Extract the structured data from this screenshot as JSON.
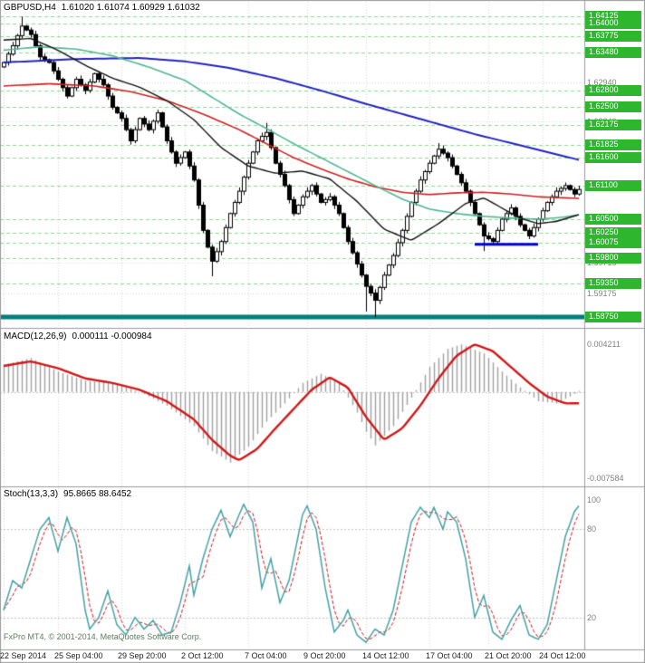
{
  "header": {
    "symbol_period": "GBPUSD,H4",
    "ohlc": "1.61020 1.61074 1.60929 1.61032"
  },
  "indicators": {
    "macd": {
      "label": "MACD(12,26,9)",
      "values": "0.000111 -0.000984",
      "scale": [
        {
          "label": "0.004211",
          "value": 0.004211
        },
        {
          "label": "-0.007584",
          "value": -0.007584
        }
      ]
    },
    "stoch": {
      "label": "Stoch(13,3,3)",
      "values": "95.8665 88.6452",
      "scale": [
        {
          "label": "100",
          "value": 100
        },
        {
          "label": "80",
          "value": 80
        },
        {
          "label": "20",
          "value": 20
        }
      ],
      "levels": [
        80,
        20
      ]
    }
  },
  "watermark": "FxPro MT4, © 2001-2014, MetaQuotes Software Corp.",
  "price_scale": {
    "green": [
      {
        "label": "1.64125",
        "price": 1.64125
      },
      {
        "label": "1.64000",
        "price": 1.64
      },
      {
        "label": "1.63775",
        "price": 1.63775
      },
      {
        "label": "1.63480",
        "price": 1.6348
      },
      {
        "label": "1.62800",
        "price": 1.628
      },
      {
        "label": "1.62500",
        "price": 1.625
      },
      {
        "label": "1.62175",
        "price": 1.62175
      },
      {
        "label": "1.61825",
        "price": 1.61825
      },
      {
        "label": "1.61600",
        "price": 1.616
      },
      {
        "label": "1.61100",
        "price": 1.611
      },
      {
        "label": "1.60500",
        "price": 1.605
      },
      {
        "label": "1.60250",
        "price": 1.6025
      },
      {
        "label": "1.60075",
        "price": 1.60075
      },
      {
        "label": "1.59800",
        "price": 1.598
      },
      {
        "label": "1.59350",
        "price": 1.5935
      },
      {
        "label": "1.58750",
        "price": 1.5875
      }
    ],
    "gray": [
      {
        "label": "1.62940",
        "price": 1.6294
      },
      {
        "label": "1.62240",
        "price": 1.6224
      },
      {
        "label": "1.59715",
        "price": 1.59715
      },
      {
        "label": "1.59175",
        "price": 1.59175
      }
    ]
  },
  "time_axis": {
    "ticks": [
      {
        "label": "22 Sep 2014",
        "index": 0
      },
      {
        "label": "25 Sep 04:00",
        "index": 12
      },
      {
        "label": "29 Sep 20:00",
        "index": 26
      },
      {
        "label": "2 Oct 12:00",
        "index": 40
      },
      {
        "label": "7 Oct 04:00",
        "index": 54
      },
      {
        "label": "9 Oct 20:00",
        "index": 67
      },
      {
        "label": "14 Oct 12:00",
        "index": 80
      },
      {
        "label": "17 Oct 04:00",
        "index": 94
      },
      {
        "label": "21 Oct 20:00",
        "index": 107
      },
      {
        "label": "24 Oct 12:00",
        "index": 119
      }
    ]
  },
  "colors": {
    "candle": "#000000",
    "badge_green": "#2fb62f",
    "badge_text": "#ffffff",
    "level_green": "#86dc86",
    "grid": "#d8d8d8",
    "scale_gray": "#808080",
    "ma_blue": "#2323bb",
    "ma_red": "#cc2222",
    "ma_green": "#4fb890",
    "ma_black": "#111111",
    "macd_hist": "#a0a0a0",
    "macd_signal": "#d01818",
    "stoch_k": "#44a2a6",
    "stoch_d": "#d01818",
    "band_teal": "#007d7d",
    "segment_blue": "#0000dd",
    "border": "#9a9a9a",
    "axis_text": "#1c1c1c"
  },
  "chart_data": [
    {
      "type": "candlestick",
      "title": "GBPUSD H4",
      "ylim": [
        1.5859,
        1.6419
      ],
      "candles": 128,
      "closes": [
        1.633,
        1.6345,
        1.636,
        1.6378,
        1.6395,
        1.6388,
        1.638,
        1.636,
        1.634,
        1.6335,
        1.633,
        1.6315,
        1.63,
        1.6285,
        1.627,
        1.6285,
        1.63,
        1.629,
        1.628,
        1.6295,
        1.631,
        1.63,
        1.629,
        1.627,
        1.625,
        1.624,
        1.623,
        1.621,
        1.619,
        1.621,
        1.623,
        1.622,
        1.621,
        1.6225,
        1.624,
        1.6215,
        1.619,
        1.617,
        1.615,
        1.616,
        1.617,
        1.6145,
        1.612,
        1.6075,
        1.603,
        1.6,
        1.5975,
        1.5992,
        1.601,
        1.6035,
        1.606,
        1.608,
        1.61,
        1.6125,
        1.615,
        1.617,
        1.619,
        1.6198,
        1.6205,
        1.6178,
        1.615,
        1.613,
        1.611,
        1.6085,
        1.606,
        1.6075,
        1.609,
        1.61,
        1.611,
        1.6095,
        1.608,
        1.6085,
        1.609,
        1.6075,
        1.606,
        1.6035,
        1.601,
        1.599,
        1.597,
        1.595,
        1.593,
        1.5918,
        1.5905,
        1.5928,
        1.595,
        1.5968,
        1.5985,
        1.6008,
        1.603,
        1.6055,
        1.608,
        1.61,
        1.612,
        1.6135,
        1.615,
        1.6163,
        1.6175,
        1.6168,
        1.616,
        1.6145,
        1.613,
        1.6115,
        1.61,
        1.608,
        1.606,
        1.604,
        1.602,
        1.6015,
        1.601,
        1.603,
        1.605,
        1.606,
        1.607,
        1.6055,
        1.604,
        1.603,
        1.602,
        1.6035,
        1.605,
        1.6065,
        1.608,
        1.609,
        1.61,
        1.6105,
        1.611,
        1.6103,
        1.6095,
        1.6103
      ],
      "extremes": {
        "4": {
          "high": 1.6412
        },
        "46": {
          "low": 1.5948
        },
        "58": {
          "high": 1.6222
        },
        "80": {
          "low": 1.5885
        },
        "82": {
          "low": 1.5875
        },
        "96": {
          "high": 1.6186
        },
        "106": {
          "low": 1.5993
        }
      },
      "moving_averages": [
        {
          "name": "ma-slow-blue",
          "color_key": "ma_blue",
          "width": 2,
          "anchors": [
            [
              0,
              1.633
            ],
            [
              15,
              1.6336
            ],
            [
              30,
              1.6338
            ],
            [
              40,
              1.6332
            ],
            [
              50,
              1.632
            ],
            [
              60,
              1.6302
            ],
            [
              70,
              1.628
            ],
            [
              80,
              1.6256
            ],
            [
              88,
              1.6238
            ],
            [
              96,
              1.622
            ],
            [
              104,
              1.6202
            ],
            [
              112,
              1.6186
            ],
            [
              120,
              1.617
            ],
            [
              127,
              1.6156
            ]
          ]
        },
        {
          "name": "ma-medium-red",
          "color_key": "ma_red",
          "width": 1.6,
          "anchors": [
            [
              0,
              1.6288
            ],
            [
              10,
              1.6292
            ],
            [
              20,
              1.6288
            ],
            [
              28,
              1.6278
            ],
            [
              36,
              1.6262
            ],
            [
              44,
              1.6238
            ],
            [
              52,
              1.621
            ],
            [
              58,
              1.6185
            ],
            [
              64,
              1.616
            ],
            [
              70,
              1.614
            ],
            [
              76,
              1.6122
            ],
            [
              82,
              1.6108
            ],
            [
              88,
              1.6098
            ],
            [
              94,
              1.6094
            ],
            [
              100,
              1.6097
            ],
            [
              106,
              1.6098
            ],
            [
              112,
              1.6095
            ],
            [
              118,
              1.609
            ],
            [
              127,
              1.6087
            ]
          ]
        },
        {
          "name": "ma-fast-green",
          "color_key": "ma_green",
          "width": 1.6,
          "anchors": [
            [
              0,
              1.6352
            ],
            [
              8,
              1.6358
            ],
            [
              16,
              1.6354
            ],
            [
              24,
              1.6342
            ],
            [
              32,
              1.6322
            ],
            [
              40,
              1.6298
            ],
            [
              46,
              1.6268
            ],
            [
              52,
              1.6238
            ],
            [
              58,
              1.6212
            ],
            [
              64,
              1.6185
            ],
            [
              70,
              1.616
            ],
            [
              76,
              1.6135
            ],
            [
              82,
              1.611
            ],
            [
              88,
              1.6086
            ],
            [
              94,
              1.6068
            ],
            [
              100,
              1.606
            ],
            [
              106,
              1.6055
            ],
            [
              112,
              1.6052
            ],
            [
              118,
              1.605
            ],
            [
              123,
              1.6053
            ],
            [
              127,
              1.6058
            ]
          ]
        },
        {
          "name": "ma-short-black",
          "color_key": "ma_black",
          "width": 1.4,
          "anchors": [
            [
              0,
              1.637
            ],
            [
              6,
              1.6373
            ],
            [
              12,
              1.6352
            ],
            [
              18,
              1.6325
            ],
            [
              24,
              1.6302
            ],
            [
              30,
              1.6286
            ],
            [
              36,
              1.6262
            ],
            [
              42,
              1.6228
            ],
            [
              48,
              1.6178
            ],
            [
              54,
              1.6145
            ],
            [
              60,
              1.6132
            ],
            [
              66,
              1.6136
            ],
            [
              72,
              1.6122
            ],
            [
              78,
              1.6082
            ],
            [
              84,
              1.6032
            ],
            [
              90,
              1.6012
            ],
            [
              96,
              1.6042
            ],
            [
              102,
              1.6078
            ],
            [
              106,
              1.6088
            ],
            [
              110,
              1.607
            ],
            [
              114,
              1.6052
            ],
            [
              118,
              1.6042
            ],
            [
              122,
              1.6046
            ],
            [
              127,
              1.6058
            ]
          ]
        }
      ],
      "support_band": {
        "price": 1.5875,
        "width": 5,
        "color_key": "band_teal"
      },
      "support_segment": {
        "from_index": 104,
        "to_index": 118,
        "price": 1.6005,
        "width": 3,
        "color_key": "segment_blue"
      }
    },
    {
      "type": "macd",
      "label": "MACD(12,26,9)",
      "ylim": [
        -0.007584,
        0.004211
      ],
      "current_main": 0.000111,
      "current_signal": -0.000984,
      "main_anchors": [
        [
          0,
          0.0024
        ],
        [
          6,
          0.003
        ],
        [
          12,
          0.0018
        ],
        [
          18,
          0.001
        ],
        [
          24,
          0.0008
        ],
        [
          30,
          0.0
        ],
        [
          36,
          -0.0012
        ],
        [
          42,
          -0.003
        ],
        [
          46,
          -0.0052
        ],
        [
          50,
          -0.0062
        ],
        [
          54,
          -0.0048
        ],
        [
          58,
          -0.0026
        ],
        [
          62,
          -0.001
        ],
        [
          66,
          0.0008
        ],
        [
          70,
          0.0016
        ],
        [
          74,
          0.0008
        ],
        [
          78,
          -0.0018
        ],
        [
          80,
          -0.0035
        ],
        [
          82,
          -0.0047
        ],
        [
          86,
          -0.003
        ],
        [
          90,
          -0.0005
        ],
        [
          94,
          0.0022
        ],
        [
          98,
          0.0038
        ],
        [
          101,
          0.0042
        ],
        [
          106,
          0.0034
        ],
        [
          110,
          0.0018
        ],
        [
          114,
          0.0004
        ],
        [
          118,
          -0.0008
        ],
        [
          122,
          -0.001
        ],
        [
          125,
          -0.0004
        ],
        [
          127,
          0.000111
        ]
      ],
      "signal_anchors": [
        [
          0,
          0.0023
        ],
        [
          6,
          0.0027
        ],
        [
          12,
          0.0021
        ],
        [
          18,
          0.0012
        ],
        [
          24,
          0.0008
        ],
        [
          30,
          0.0002
        ],
        [
          36,
          -0.0008
        ],
        [
          42,
          -0.0024
        ],
        [
          46,
          -0.0042
        ],
        [
          50,
          -0.0056
        ],
        [
          52,
          -0.006
        ],
        [
          56,
          -0.005
        ],
        [
          60,
          -0.0032
        ],
        [
          64,
          -0.0015
        ],
        [
          68,
          0.0002
        ],
        [
          72,
          0.0013
        ],
        [
          76,
          0.0004
        ],
        [
          80,
          -0.0022
        ],
        [
          84,
          -0.0042
        ],
        [
          88,
          -0.0032
        ],
        [
          92,
          -0.0012
        ],
        [
          96,
          0.0012
        ],
        [
          100,
          0.0032
        ],
        [
          104,
          0.0042
        ],
        [
          108,
          0.0036
        ],
        [
          112,
          0.0022
        ],
        [
          116,
          0.0008
        ],
        [
          120,
          -0.0004
        ],
        [
          124,
          -0.001
        ],
        [
          127,
          -0.000984
        ]
      ]
    },
    {
      "type": "stochastic",
      "label": "Stoch(13,3,3)",
      "ylim": [
        0,
        100
      ],
      "levels": [
        80,
        20
      ],
      "current_k": 95.8665,
      "current_d": 88.6452,
      "d_rule": "sma3_of_k",
      "k_anchors": [
        [
          0,
          25
        ],
        [
          2,
          45
        ],
        [
          4,
          40
        ],
        [
          6,
          60
        ],
        [
          8,
          80
        ],
        [
          10,
          88
        ],
        [
          12,
          65
        ],
        [
          14,
          88
        ],
        [
          16,
          70
        ],
        [
          18,
          25
        ],
        [
          19,
          12
        ],
        [
          21,
          20
        ],
        [
          23,
          38
        ],
        [
          25,
          15
        ],
        [
          27,
          8
        ],
        [
          29,
          20
        ],
        [
          31,
          12
        ],
        [
          33,
          18
        ],
        [
          35,
          8
        ],
        [
          37,
          10
        ],
        [
          39,
          30
        ],
        [
          41,
          55
        ],
        [
          42,
          35
        ],
        [
          44,
          60
        ],
        [
          46,
          80
        ],
        [
          48,
          93
        ],
        [
          50,
          75
        ],
        [
          52,
          90
        ],
        [
          53,
          97
        ],
        [
          55,
          85
        ],
        [
          57,
          40
        ],
        [
          59,
          60
        ],
        [
          61,
          30
        ],
        [
          63,
          45
        ],
        [
          65,
          75
        ],
        [
          66,
          90
        ],
        [
          67,
          96
        ],
        [
          69,
          80
        ],
        [
          71,
          40
        ],
        [
          73,
          10
        ],
        [
          75,
          18
        ],
        [
          76,
          25
        ],
        [
          78,
          8
        ],
        [
          80,
          3
        ],
        [
          82,
          12
        ],
        [
          84,
          8
        ],
        [
          86,
          25
        ],
        [
          88,
          55
        ],
        [
          90,
          85
        ],
        [
          92,
          95
        ],
        [
          94,
          88
        ],
        [
          95,
          95
        ],
        [
          97,
          80
        ],
        [
          98,
          92
        ],
        [
          100,
          85
        ],
        [
          102,
          60
        ],
        [
          104,
          20
        ],
        [
          106,
          35
        ],
        [
          108,
          10
        ],
        [
          110,
          5
        ],
        [
          112,
          18
        ],
        [
          114,
          28
        ],
        [
          116,
          8
        ],
        [
          118,
          5
        ],
        [
          120,
          15
        ],
        [
          122,
          45
        ],
        [
          124,
          75
        ],
        [
          126,
          92
        ],
        [
          127,
          96
        ]
      ]
    }
  ]
}
